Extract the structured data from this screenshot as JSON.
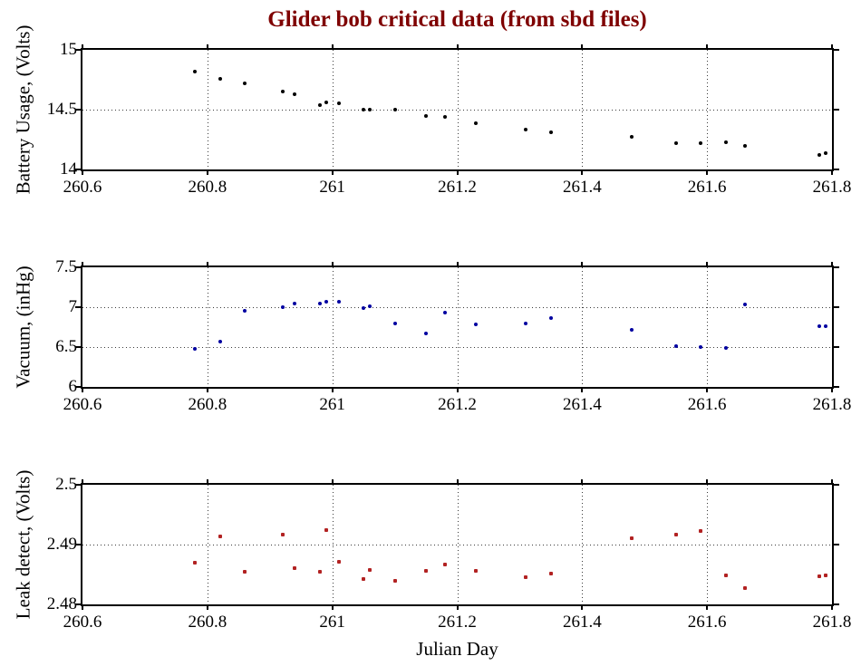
{
  "title": {
    "text": "Glider bob critical data (from sbd files)",
    "color": "#7f0000"
  },
  "xlabel": "Julian Day",
  "axis_color": "#000000",
  "grid_color": "#3a3a3a",
  "chart_data": [
    {
      "type": "scatter",
      "name": "battery-usage",
      "ylabel": "Battery Usage, (Volts)",
      "marker_color": "#000000",
      "marker_shape": "circle",
      "marker_size": 4,
      "xlim": [
        260.6,
        261.8
      ],
      "ylim": [
        14,
        15
      ],
      "xticks": [
        260.6,
        260.8,
        261,
        261.2,
        261.4,
        261.6,
        261.8
      ],
      "xtick_labels": [
        "260.6",
        "260.8",
        "261",
        "261.2",
        "261.4",
        "261.6",
        "261.8"
      ],
      "yticks": [
        14,
        14.5,
        15
      ],
      "ytick_labels": [
        "14",
        "14.5",
        "15"
      ],
      "grid": true,
      "x": [
        260.78,
        260.82,
        260.86,
        260.92,
        260.94,
        260.98,
        260.99,
        261.01,
        261.05,
        261.06,
        261.1,
        261.15,
        261.18,
        261.23,
        261.31,
        261.35,
        261.48,
        261.55,
        261.59,
        261.63,
        261.66,
        261.78,
        261.79
      ],
      "y": [
        14.82,
        14.76,
        14.72,
        14.65,
        14.63,
        14.54,
        14.56,
        14.55,
        14.5,
        14.5,
        14.5,
        14.45,
        14.44,
        14.39,
        14.33,
        14.31,
        14.27,
        14.22,
        14.22,
        14.23,
        14.2,
        14.12,
        14.14
      ]
    },
    {
      "type": "scatter",
      "name": "vacuum",
      "ylabel": "Vacuum, (inHg)",
      "marker_color": "#0000a0",
      "marker_shape": "circle",
      "marker_size": 4,
      "xlim": [
        260.6,
        261.8
      ],
      "ylim": [
        6,
        7.5
      ],
      "xticks": [
        260.6,
        260.8,
        261,
        261.2,
        261.4,
        261.6,
        261.8
      ],
      "xtick_labels": [
        "260.6",
        "260.8",
        "261",
        "261.2",
        "261.4",
        "261.6",
        "261.8"
      ],
      "yticks": [
        6,
        6.5,
        7,
        7.5
      ],
      "ytick_labels": [
        "6",
        "6.5",
        "7",
        "7.5"
      ],
      "grid": true,
      "x": [
        260.78,
        260.82,
        260.86,
        260.92,
        260.94,
        260.98,
        260.99,
        261.01,
        261.05,
        261.06,
        261.1,
        261.15,
        261.18,
        261.23,
        261.31,
        261.35,
        261.48,
        261.55,
        261.59,
        261.63,
        261.66,
        261.78,
        261.79
      ],
      "y": [
        6.48,
        6.57,
        6.95,
        7.0,
        7.04,
        7.04,
        7.07,
        7.07,
        6.99,
        7.01,
        6.79,
        6.67,
        6.93,
        6.78,
        6.8,
        6.86,
        6.72,
        6.51,
        6.5,
        6.49,
        7.03,
        6.76,
        6.76
      ]
    },
    {
      "type": "scatter",
      "name": "leak-detect",
      "ylabel": "Leak detect, (Volts)",
      "marker_color": "#b22222",
      "marker_shape": "square",
      "marker_size": 4,
      "xlim": [
        260.6,
        261.8
      ],
      "ylim": [
        2.48,
        2.5
      ],
      "xticks": [
        260.6,
        260.8,
        261,
        261.2,
        261.4,
        261.6,
        261.8
      ],
      "xtick_labels": [
        "260.6",
        "260.8",
        "261",
        "261.2",
        "261.4",
        "261.6",
        "261.8"
      ],
      "yticks": [
        2.48,
        2.49,
        2.5
      ],
      "ytick_labels": [
        "2.48",
        "2.49",
        "2.5"
      ],
      "grid": true,
      "x": [
        260.78,
        260.82,
        260.86,
        260.92,
        260.94,
        260.98,
        260.99,
        261.01,
        261.05,
        261.06,
        261.1,
        261.15,
        261.18,
        261.23,
        261.31,
        261.35,
        261.48,
        261.55,
        261.59,
        261.63,
        261.66,
        261.78,
        261.79
      ],
      "y": [
        2.4869,
        2.4914,
        2.4854,
        2.4916,
        2.4861,
        2.4855,
        2.4925,
        2.4871,
        2.4843,
        2.4857,
        2.4839,
        2.4856,
        2.4866,
        2.4856,
        2.4846,
        2.4851,
        2.491,
        2.4916,
        2.4922,
        2.4848,
        2.4828,
        2.4847,
        2.4848
      ]
    }
  ]
}
